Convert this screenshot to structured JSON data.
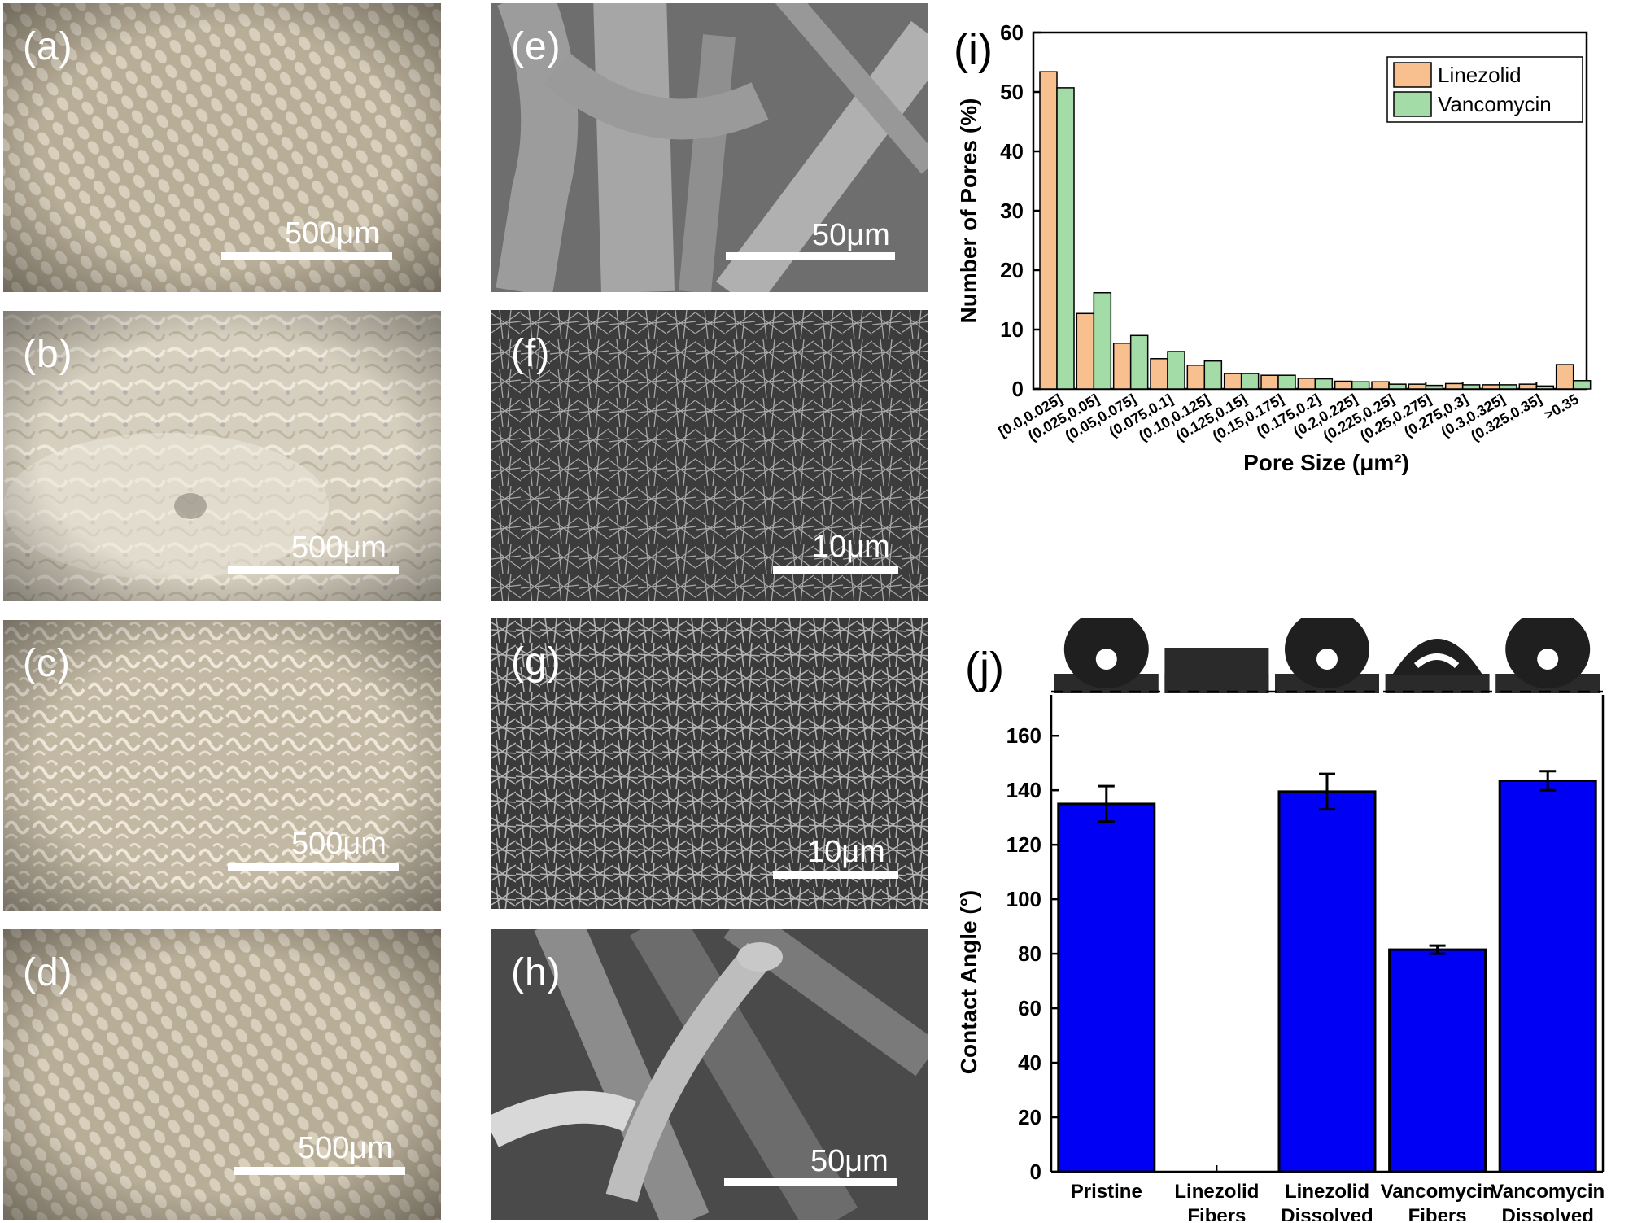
{
  "panels": {
    "a": {
      "label": "(a)",
      "scale": "500μm"
    },
    "b": {
      "label": "(b)",
      "scale": "500μm"
    },
    "c": {
      "label": "(c)",
      "scale": "500μm"
    },
    "d": {
      "label": "(d)",
      "scale": "500μm"
    },
    "e": {
      "label": "(e)",
      "scale": "50μm"
    },
    "f": {
      "label": "(f)",
      "scale": "10μm"
    },
    "g": {
      "label": "(g)",
      "scale": "10μm"
    },
    "h": {
      "label": "(h)",
      "scale": "50μm"
    },
    "i": {
      "label": "(i)"
    },
    "j": {
      "label": "(j)"
    }
  },
  "colors": {
    "linezolid": "#f9c08f",
    "vancomycin": "#a3dca6",
    "contact": "#0000f5"
  },
  "chart_data": [
    {
      "id": "i",
      "type": "bar",
      "xlabel": "Pore Size (μm²)",
      "ylabel": "Number of Pores (%)",
      "ylim": [
        0,
        60
      ],
      "yticks": [
        0,
        10,
        20,
        30,
        40,
        50,
        60
      ],
      "categories": [
        "[0.0,0.025]",
        "(0.025,0.05]",
        "(0.05,0.075]",
        "(0.075,0.1]",
        "(0.10,0.125]",
        "(0.125,0.15]",
        "(0.15,0.175]",
        "(0.175,0.2]",
        "(0.2,0.225]",
        "(0.225,0.25]",
        "(0.25,0.275]",
        "(0.275,0.3]",
        "(0.3,0.325]",
        "(0.325,0.35]",
        ">0.35"
      ],
      "series": [
        {
          "name": "Linezolid",
          "values": [
            53.4,
            12.7,
            7.7,
            5.1,
            4.0,
            2.6,
            2.3,
            1.8,
            1.3,
            1.2,
            0.8,
            0.9,
            0.7,
            0.8,
            4.1
          ]
        },
        {
          "name": "Vancomycin",
          "values": [
            50.7,
            16.2,
            9.0,
            6.3,
            4.7,
            2.6,
            2.3,
            1.7,
            1.2,
            0.8,
            0.6,
            0.7,
            0.7,
            0.5,
            1.4
          ]
        }
      ],
      "legend": "top-right"
    },
    {
      "id": "j",
      "type": "bar",
      "xlabel": "",
      "ylabel": "Contact Angle (°)",
      "ylim": [
        0,
        175
      ],
      "yticks": [
        0,
        20,
        40,
        60,
        80,
        100,
        120,
        140,
        160
      ],
      "categories": [
        [
          "Pristine"
        ],
        [
          "Linezolid",
          "Fibers"
        ],
        [
          "Linezolid",
          "Dissolved"
        ],
        [
          "Vancomycin",
          "Fibers"
        ],
        [
          "Vancomycin",
          "Dissolved"
        ]
      ],
      "values": [
        135,
        0,
        139.5,
        81.5,
        143.5
      ],
      "errors": [
        6.5,
        0,
        6.5,
        1.5,
        3.5
      ]
    }
  ]
}
